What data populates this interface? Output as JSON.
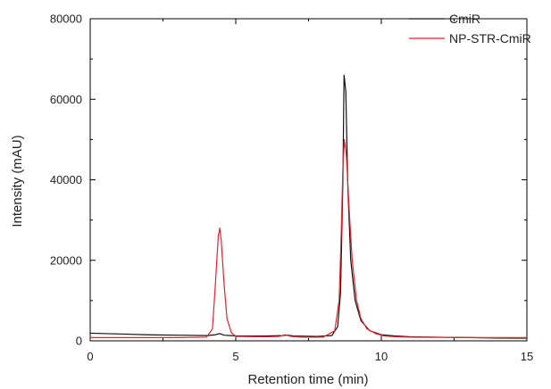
{
  "chart_data": {
    "type": "line",
    "xlabel": "Retention time (min)",
    "ylabel": "Intensity (mAU)",
    "xlim": [
      0,
      15
    ],
    "ylim": [
      0,
      80000
    ],
    "x_ticks": [
      0,
      5,
      10,
      15
    ],
    "y_ticks": [
      0,
      20000,
      40000,
      60000,
      80000
    ],
    "grid": false,
    "legend_position": "top-right",
    "series": [
      {
        "name": "CmiR",
        "color": "#111111",
        "x": [
          0,
          1,
          2,
          3,
          4,
          4.3,
          4.45,
          4.6,
          5,
          6,
          6.6,
          6.8,
          7,
          7.8,
          8.3,
          8.5,
          8.6,
          8.68,
          8.72,
          8.78,
          8.85,
          8.95,
          9.1,
          9.3,
          9.6,
          10,
          10.5,
          11,
          12,
          13,
          14,
          15
        ],
        "y": [
          1900,
          1700,
          1500,
          1400,
          1300,
          1500,
          1800,
          1400,
          1200,
          1200,
          1300,
          1400,
          1200,
          1100,
          1300,
          3500,
          12000,
          40000,
          66000,
          62000,
          38000,
          20000,
          10000,
          5000,
          2500,
          1500,
          1200,
          1000,
          900,
          800,
          700,
          650
        ]
      },
      {
        "name": "NP-STR-CmiR",
        "color": "#e8212b",
        "x": [
          0,
          1,
          2,
          3,
          4,
          4.2,
          4.3,
          4.4,
          4.45,
          4.5,
          4.6,
          4.7,
          4.85,
          5,
          6,
          6.5,
          6.7,
          6.9,
          7.2,
          8,
          8.4,
          8.55,
          8.62,
          8.68,
          8.73,
          8.8,
          8.9,
          9.0,
          9.15,
          9.3,
          9.5,
          9.8,
          10.1,
          10.5,
          11,
          12,
          13,
          14,
          15
        ],
        "y": [
          800,
          800,
          800,
          800,
          900,
          3000,
          14000,
          26000,
          28000,
          25000,
          14000,
          5500,
          2000,
          1100,
          1000,
          1100,
          1500,
          1100,
          900,
          900,
          2500,
          10000,
          26000,
          43000,
          50000,
          46000,
          32000,
          20000,
          10000,
          5500,
          3000,
          1800,
          1200,
          1000,
          900,
          850,
          800,
          800,
          800
        ]
      }
    ]
  }
}
